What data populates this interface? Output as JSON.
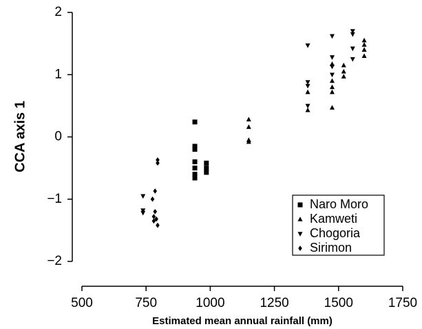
{
  "chart_data": {
    "type": "scatter",
    "x_label": "Estimated mean annual rainfall (mm)",
    "y_label": "CCA axis 1",
    "xlim": [
      500,
      1750
    ],
    "xticks": [
      500,
      750,
      1000,
      1250,
      1500,
      1750
    ],
    "ylim": [
      -2,
      2
    ],
    "yticks": [
      {
        "value": -2,
        "label": "−2"
      },
      {
        "value": -1,
        "label": "−1"
      },
      0,
      1,
      2
    ],
    "grid": false,
    "legend": "lower right",
    "series": [
      {
        "name": "Naro Moro",
        "color": "#000000",
        "marker": "square",
        "x": [
          940,
          940,
          940,
          940,
          940,
          940,
          940,
          985,
          985,
          985
        ],
        "values": [
          0.24,
          -0.15,
          -0.2,
          -0.4,
          -0.5,
          -0.6,
          -0.66,
          -0.42,
          -0.5,
          -0.57
        ]
      },
      {
        "name": "Kamweti",
        "color": "#000000",
        "marker": "triangle-up",
        "x": [
          1150,
          1150,
          1150,
          1150,
          1380,
          1380,
          1475,
          1475,
          1475,
          1475,
          1475,
          1520,
          1520,
          1520,
          1600,
          1600,
          1600,
          1600
        ],
        "values": [
          0.28,
          0.16,
          -0.05,
          -0.08,
          0.72,
          0.43,
          1.17,
          0.9,
          0.8,
          0.72,
          0.47,
          1.15,
          1.05,
          0.97,
          1.55,
          1.48,
          1.4,
          1.3
        ]
      },
      {
        "name": "Chogoria",
        "color": "#000000",
        "marker": "triangle-down",
        "x": [
          738,
          738,
          738,
          1380,
          1380,
          1380,
          1380,
          1475,
          1475,
          1475,
          1475,
          1555,
          1555,
          1555,
          1555
        ],
        "values": [
          -0.95,
          -1.18,
          -1.22,
          1.47,
          0.88,
          0.82,
          0.5,
          1.62,
          1.28,
          1.13,
          1.0,
          1.7,
          1.65,
          1.42,
          1.25
        ]
      },
      {
        "name": "Sirimon",
        "color": "#000000",
        "marker": "diamond",
        "x": [
          795,
          795,
          785,
          775,
          785,
          780,
          790,
          780,
          795
        ],
        "values": [
          -0.37,
          -0.42,
          -0.87,
          -1.0,
          -1.2,
          -1.28,
          -1.32,
          -1.35,
          -1.42
        ]
      }
    ]
  }
}
